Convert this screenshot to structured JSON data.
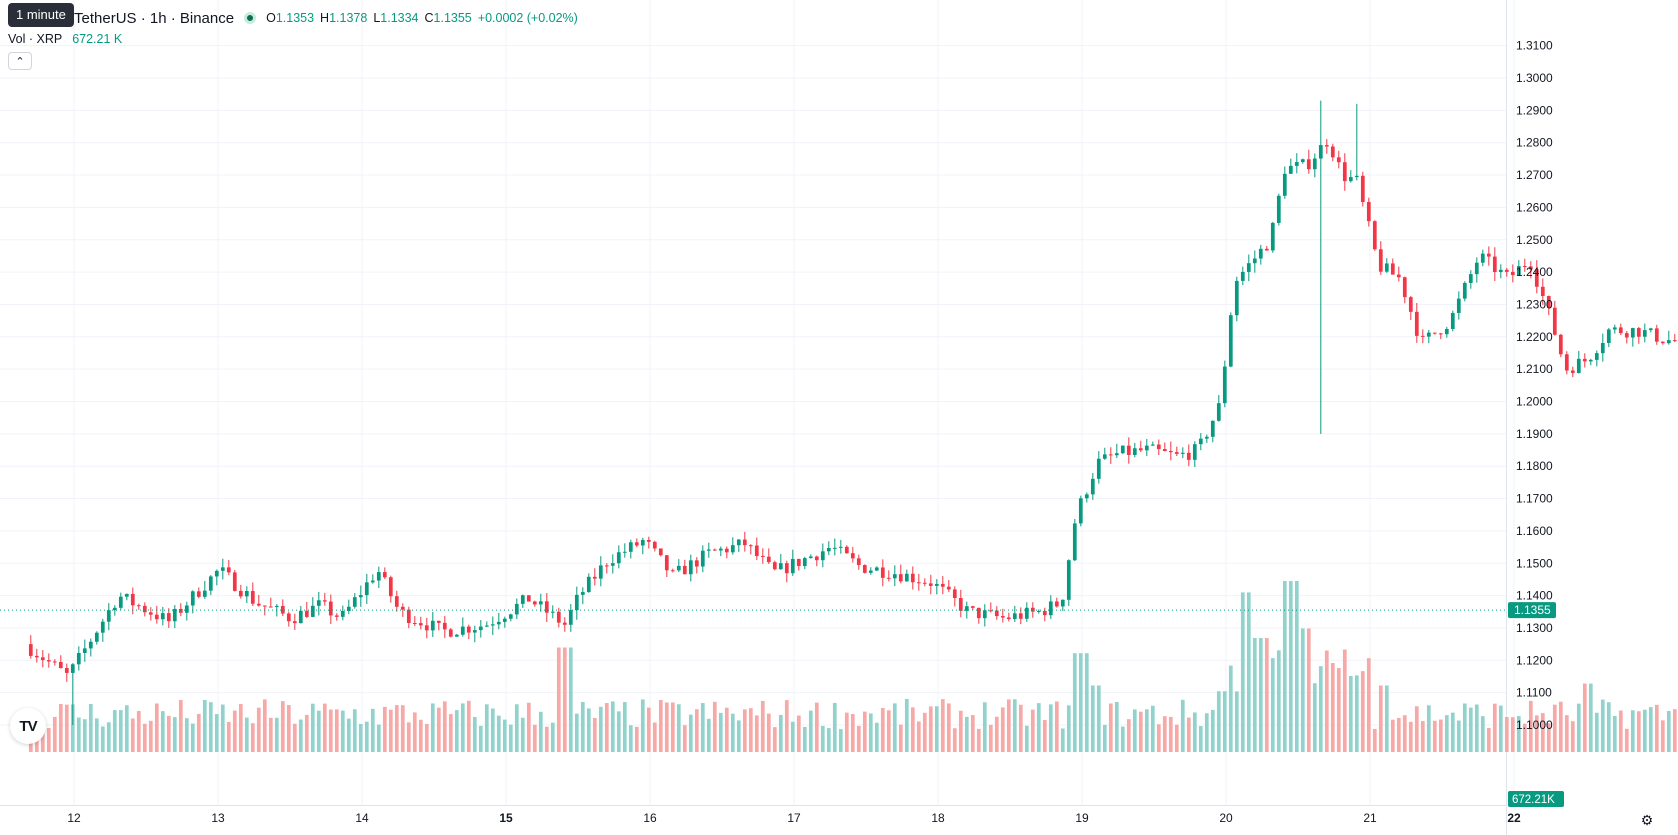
{
  "header": {
    "symbol": "TetherUS · 1h · Binance",
    "tooltip": "1 minute",
    "ohlc": [
      {
        "k": "O",
        "v": "1.1353"
      },
      {
        "k": "H",
        "v": "1.1378"
      },
      {
        "k": "L",
        "v": "1.1334"
      },
      {
        "k": "C",
        "v": "1.1355"
      }
    ],
    "change": "+0.0002 (+0.02%)"
  },
  "volume_legend": {
    "label": "Vol · XRP",
    "value": "672.21 K"
  },
  "icons": {
    "collapse": "chevron-up-icon",
    "logo": "tradingview-logo-icon",
    "settings": "gear-icon"
  },
  "logo_text": "TV",
  "colors": {
    "up": "#089981",
    "down": "#f23645",
    "up_vol": "#92d2cc",
    "down_vol": "#f7a9a7",
    "grid": "#f0f3fa",
    "text": "#131722"
  },
  "chart_data": {
    "type": "candlestick",
    "price_axis": {
      "min": 0.998,
      "max": 1.313,
      "ticks": [
        "1.0000",
        "1.1000",
        "1.1100",
        "1.1200",
        "1.1300",
        "1.1400",
        "1.1500",
        "1.1600",
        "1.1700",
        "1.1800",
        "1.1900",
        "1.2000",
        "1.2100",
        "1.2200",
        "1.2300",
        "1.2400",
        "1.2500",
        "1.2600",
        "1.2700",
        "1.2800",
        "1.2900",
        "1.3000",
        "1.3100"
      ]
    },
    "last_price": "1.1355",
    "last_volume": "672.21K",
    "x_axis": {
      "labels": [
        "12",
        "13",
        "14",
        "15",
        "16",
        "17",
        "18",
        "19",
        "20",
        "21",
        "22"
      ],
      "bold": [
        "15",
        "22"
      ]
    },
    "price_path": [
      [
        -0.3,
        1.125
      ],
      [
        0,
        1.115
      ],
      [
        0.35,
        1.14
      ],
      [
        0.7,
        1.132
      ],
      [
        1.05,
        1.148
      ],
      [
        1.3,
        1.138
      ],
      [
        1.55,
        1.133
      ],
      [
        1.75,
        1.137
      ],
      [
        1.9,
        1.133
      ],
      [
        2.15,
        1.148
      ],
      [
        2.3,
        1.135
      ],
      [
        2.6,
        1.129
      ],
      [
        2.9,
        1.131
      ],
      [
        3.05,
        1.135
      ],
      [
        3.2,
        1.139
      ],
      [
        3.45,
        1.131
      ],
      [
        3.55,
        1.14
      ],
      [
        3.75,
        1.151
      ],
      [
        4.0,
        1.157
      ],
      [
        4.2,
        1.146
      ],
      [
        4.45,
        1.153
      ],
      [
        4.7,
        1.156
      ],
      [
        4.9,
        1.147
      ],
      [
        5.05,
        1.15
      ],
      [
        5.3,
        1.155
      ],
      [
        5.5,
        1.149
      ],
      [
        5.75,
        1.147
      ],
      [
        6.0,
        1.144
      ],
      [
        6.25,
        1.135
      ],
      [
        6.5,
        1.133
      ],
      [
        6.75,
        1.135
      ],
      [
        6.9,
        1.138
      ],
      [
        7.0,
        1.165
      ],
      [
        7.15,
        1.181
      ],
      [
        7.3,
        1.184
      ],
      [
        7.5,
        1.185
      ],
      [
        7.7,
        1.183
      ],
      [
        7.85,
        1.185
      ],
      [
        8.0,
        1.199
      ],
      [
        8.1,
        1.237
      ],
      [
        8.35,
        1.25
      ],
      [
        8.45,
        1.272
      ],
      [
        8.6,
        1.273
      ],
      [
        8.75,
        1.281
      ],
      [
        8.85,
        1.27
      ],
      [
        8.95,
        1.268
      ],
      [
        9.1,
        1.242
      ],
      [
        9.25,
        1.238
      ],
      [
        9.4,
        1.218
      ],
      [
        9.6,
        1.225
      ],
      [
        9.8,
        1.245
      ],
      [
        10.0,
        1.238
      ],
      [
        10.15,
        1.244
      ],
      [
        10.3,
        1.225
      ],
      [
        10.4,
        1.21
      ],
      [
        10.55,
        1.213
      ],
      [
        10.7,
        1.222
      ],
      [
        10.9,
        1.222
      ],
      [
        11.1,
        1.219
      ],
      [
        11.3,
        1.218
      ],
      [
        11.5,
        1.21
      ],
      [
        11.6,
        1.199
      ],
      [
        11.85,
        1.193
      ],
      [
        12.0,
        1.199
      ],
      [
        12.15,
        1.212
      ],
      [
        12.3,
        1.221
      ],
      [
        12.45,
        1.21
      ],
      [
        12.55,
        1.19
      ],
      [
        12.7,
        1.18
      ],
      [
        12.9,
        1.187
      ],
      [
        13.1,
        1.191
      ],
      [
        13.2,
        1.175
      ],
      [
        13.35,
        1.17
      ],
      [
        13.55,
        1.18
      ],
      [
        13.75,
        1.17
      ],
      [
        13.9,
        1.166
      ],
      [
        14.0,
        1.16
      ],
      [
        14.2,
        1.134
      ],
      [
        14.35,
        1.147
      ],
      [
        14.55,
        1.14
      ],
      [
        14.7,
        1.148
      ],
      [
        14.9,
        1.15
      ],
      [
        15.05,
        1.14
      ],
      [
        15.2,
        1.125
      ],
      [
        15.35,
        1.13
      ],
      [
        15.55,
        1.124
      ],
      [
        15.7,
        1.129
      ],
      [
        15.8,
        1.141
      ],
      [
        16.0,
        1.132
      ],
      [
        16.2,
        1.134
      ],
      [
        16.4,
        1.13
      ],
      [
        16.6,
        1.137
      ],
      [
        16.8,
        1.142
      ],
      [
        17.0,
        1.148
      ],
      [
        17.25,
        1.149
      ],
      [
        17.5,
        1.147
      ],
      [
        17.75,
        1.147
      ],
      [
        17.9,
        1.141
      ],
      [
        18.1,
        1.146
      ],
      [
        18.3,
        1.15
      ],
      [
        18.5,
        1.148
      ],
      [
        18.75,
        1.148
      ],
      [
        19.0,
        1.146
      ],
      [
        19.2,
        1.141
      ],
      [
        19.4,
        1.142
      ],
      [
        19.6,
        1.148
      ],
      [
        19.85,
        1.143
      ],
      [
        20.05,
        1.145
      ],
      [
        20.25,
        1.143
      ],
      [
        20.45,
        1.135
      ],
      [
        20.6,
        1.129
      ],
      [
        20.75,
        1.124
      ],
      [
        20.9,
        1.145
      ],
      [
        21.05,
        1.132
      ],
      [
        21.25,
        1.135
      ],
      [
        21.35,
        1.1355
      ]
    ],
    "volume_spikes": [
      [
        3.4,
        0.55
      ],
      [
        7.0,
        0.52
      ],
      [
        8.15,
        0.84
      ],
      [
        8.25,
        0.6
      ],
      [
        8.45,
        0.9
      ],
      [
        8.55,
        0.65
      ],
      [
        12.5,
        0.55
      ],
      [
        14.1,
        0.56
      ],
      [
        20.5,
        0.5
      ],
      [
        7.1,
        0.35
      ],
      [
        9.1,
        0.35
      ],
      [
        8.9,
        0.4
      ],
      [
        8.0,
        0.32
      ],
      [
        10.5,
        0.36
      ],
      [
        15.2,
        0.3
      ]
    ]
  }
}
